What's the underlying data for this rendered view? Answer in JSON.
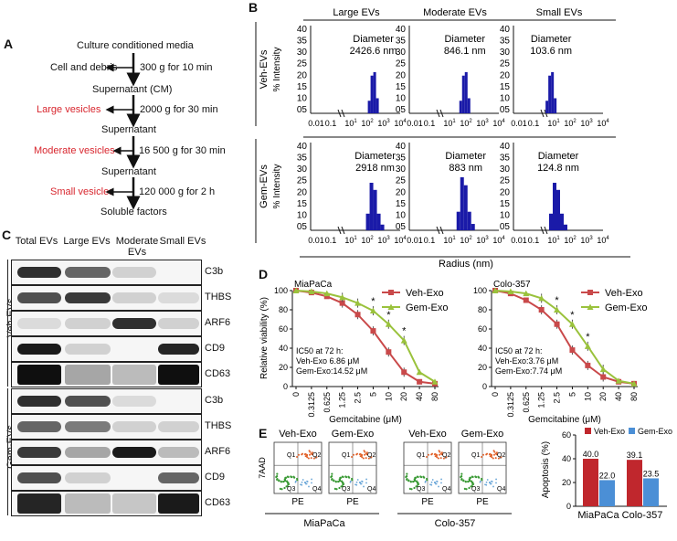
{
  "panelA": {
    "letter": "A",
    "steps": [
      "Culture conditioned media",
      "Cell and debris",
      "300 g for 10 min",
      "Supernatant (CM)",
      "Large vesicles",
      "2000 g for 30 min",
      "Supernatant",
      "Moderate vesicles",
      "16 500 g for 30 min",
      "Supernatant",
      "Small vesicles",
      "120 000 g for 2 h",
      "Soluble factors"
    ]
  },
  "panelB": {
    "letter": "B",
    "columns": [
      "Large EVs",
      "Moderate EVs",
      "Small EVs"
    ],
    "rows": [
      "Veh-EVs",
      "Gem-EVs"
    ],
    "ylabel": "% Intensity",
    "xlabel": "Radius (nm)",
    "diameter_label": "Diameter",
    "y_ticks": [
      "40",
      "35",
      "30",
      "25",
      "20",
      "15",
      "10",
      "05"
    ],
    "x_ticks_sub": [
      "0.01",
      "0.1",
      "1",
      "2",
      "3",
      "4"
    ],
    "x_ticks_prefix": [
      "0.01",
      "0.1",
      "10",
      "10",
      "10",
      "10"
    ],
    "diameters": [
      [
        "2426.6 nm",
        "846.1 nm",
        "103.6 nm"
      ],
      [
        "2918 nm",
        "883 nm",
        "124.8 nm"
      ]
    ]
  },
  "panelC": {
    "letter": "C",
    "columns": [
      "Total EVs",
      "Large EVs",
      "Moderate EVs",
      "Small EVs"
    ],
    "groups": [
      "Veh-EVs",
      "Gem-EVs"
    ],
    "proteins": [
      "C3b",
      "THBS",
      "ARF6",
      "CD9",
      "CD63"
    ]
  },
  "panelD": {
    "letter": "D",
    "ylabel": "Relative viability (%)",
    "xlabel": "Gemcitabine (μM)",
    "y_ticks": [
      "0",
      "20",
      "40",
      "60",
      "80",
      "100"
    ],
    "x_ticks": [
      "0",
      "0.3125",
      "0.625",
      "1.25",
      "2.5",
      "5",
      "10",
      "20",
      "40",
      "80"
    ],
    "legend": [
      "Veh-Exo",
      "Gem-Exo"
    ],
    "colors": {
      "veh": "#c9494a",
      "gem": "#9ac23c"
    },
    "plots": [
      {
        "title": "MiaPaCa",
        "ic50_title": "IC50 at 72 h:",
        "veh_text": "Veh-Exo 6.86 μM",
        "gem_text": "Gem-Exo:14.52 μM"
      },
      {
        "title": "Colo-357",
        "ic50_title": "IC50 at 72 h:",
        "veh_text": "Veh-Exo:3.76 μM",
        "gem_text": "Gem-Exo:7.74 μM"
      }
    ],
    "star": "*"
  },
  "chart_data": [
    {
      "type": "line",
      "title": "MiaPaCa",
      "xlabel": "Gemcitabine (μM)",
      "ylabel": "Relative viability (%)",
      "categories": [
        "0",
        "0.3125",
        "0.625",
        "1.25",
        "2.5",
        "5",
        "10",
        "20",
        "40",
        "80"
      ],
      "ylim": [
        0,
        100
      ],
      "series": [
        {
          "name": "Veh-Exo",
          "values": [
            100,
            98,
            94,
            87,
            75,
            58,
            36,
            15,
            5,
            3
          ]
        },
        {
          "name": "Gem-Exo",
          "values": [
            100,
            99,
            97,
            93,
            87,
            79,
            65,
            48,
            15,
            5
          ]
        }
      ],
      "significance_at": [
        "5",
        "10",
        "20"
      ]
    },
    {
      "type": "line",
      "title": "Colo-357",
      "xlabel": "Gemcitabine (μM)",
      "ylabel": "Relative viability (%)",
      "categories": [
        "0",
        "0.3125",
        "0.625",
        "1.25",
        "2.5",
        "5",
        "10",
        "20",
        "40",
        "80"
      ],
      "ylim": [
        0,
        100
      ],
      "series": [
        {
          "name": "Veh-Exo",
          "values": [
            100,
            97,
            90,
            80,
            65,
            38,
            22,
            10,
            5,
            3
          ]
        },
        {
          "name": "Gem-Exo",
          "values": [
            100,
            99,
            97,
            92,
            80,
            65,
            42,
            18,
            6,
            3
          ]
        }
      ],
      "significance_at": [
        "2.5",
        "5",
        "10"
      ]
    },
    {
      "type": "bar",
      "title": "",
      "ylabel": "Apoptosis (%)",
      "categories": [
        "MiaPaCa",
        "Colo-357"
      ],
      "ylim": [
        0,
        60
      ],
      "y_ticks": [
        "0",
        "20",
        "40",
        "60"
      ],
      "series": [
        {
          "name": "Veh-Exo",
          "values": [
            40.0,
            39.1
          ],
          "labels": [
            "40.0",
            "39.1"
          ]
        },
        {
          "name": "Gem-Exo",
          "values": [
            22.0,
            23.5
          ],
          "labels": [
            "22.0",
            "23.5"
          ]
        }
      ]
    }
  ],
  "panelE": {
    "letter": "E",
    "plots": [
      "Veh-Exo",
      "Gem-Exo",
      "Veh-Exo",
      "Gem-Exo"
    ],
    "quadrants": [
      "Q1",
      "Q2",
      "Q3",
      "Q4"
    ],
    "yaxis": "7AAD",
    "xaxis": "PE",
    "cells": [
      "MiaPaCa",
      "Colo-357"
    ],
    "colors": {
      "veh": "#c0272d",
      "gem": "#4b8fd6"
    }
  }
}
